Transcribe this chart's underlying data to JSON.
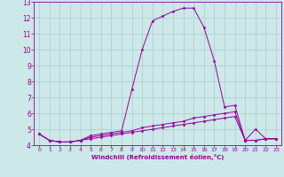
{
  "x": [
    0,
    1,
    2,
    3,
    4,
    5,
    6,
    7,
    8,
    9,
    10,
    11,
    12,
    13,
    14,
    15,
    16,
    17,
    18,
    19,
    20,
    21,
    22,
    23
  ],
  "line1": [
    4.7,
    4.3,
    4.2,
    4.2,
    4.3,
    4.6,
    4.7,
    4.8,
    4.9,
    7.5,
    10.0,
    11.8,
    12.1,
    12.4,
    12.6,
    12.6,
    11.4,
    9.3,
    6.4,
    6.5,
    4.3,
    5.0,
    4.4,
    4.4
  ],
  "line2": [
    4.7,
    4.3,
    4.2,
    4.2,
    4.3,
    4.5,
    4.6,
    4.7,
    4.8,
    4.9,
    5.1,
    5.2,
    5.3,
    5.4,
    5.5,
    5.7,
    5.8,
    5.9,
    6.0,
    6.1,
    4.3,
    4.3,
    4.4,
    4.4
  ],
  "line3": [
    4.7,
    4.3,
    4.2,
    4.2,
    4.3,
    4.4,
    4.5,
    4.6,
    4.7,
    4.8,
    4.9,
    5.0,
    5.1,
    5.2,
    5.3,
    5.4,
    5.5,
    5.6,
    5.7,
    5.8,
    4.3,
    4.3,
    4.4,
    4.4
  ],
  "line_color": "#990099",
  "bg_color": "#cce8e8",
  "grid_color": "#aacccc",
  "xlabel": "Windchill (Refroidissement éolien,°C)",
  "ylim": [
    4,
    13
  ],
  "xlim": [
    -0.5,
    23.5
  ],
  "yticks": [
    4,
    5,
    6,
    7,
    8,
    9,
    10,
    11,
    12,
    13
  ],
  "xticks": [
    0,
    1,
    2,
    3,
    4,
    5,
    6,
    7,
    8,
    9,
    10,
    11,
    12,
    13,
    14,
    15,
    16,
    17,
    18,
    19,
    20,
    21,
    22,
    23
  ]
}
